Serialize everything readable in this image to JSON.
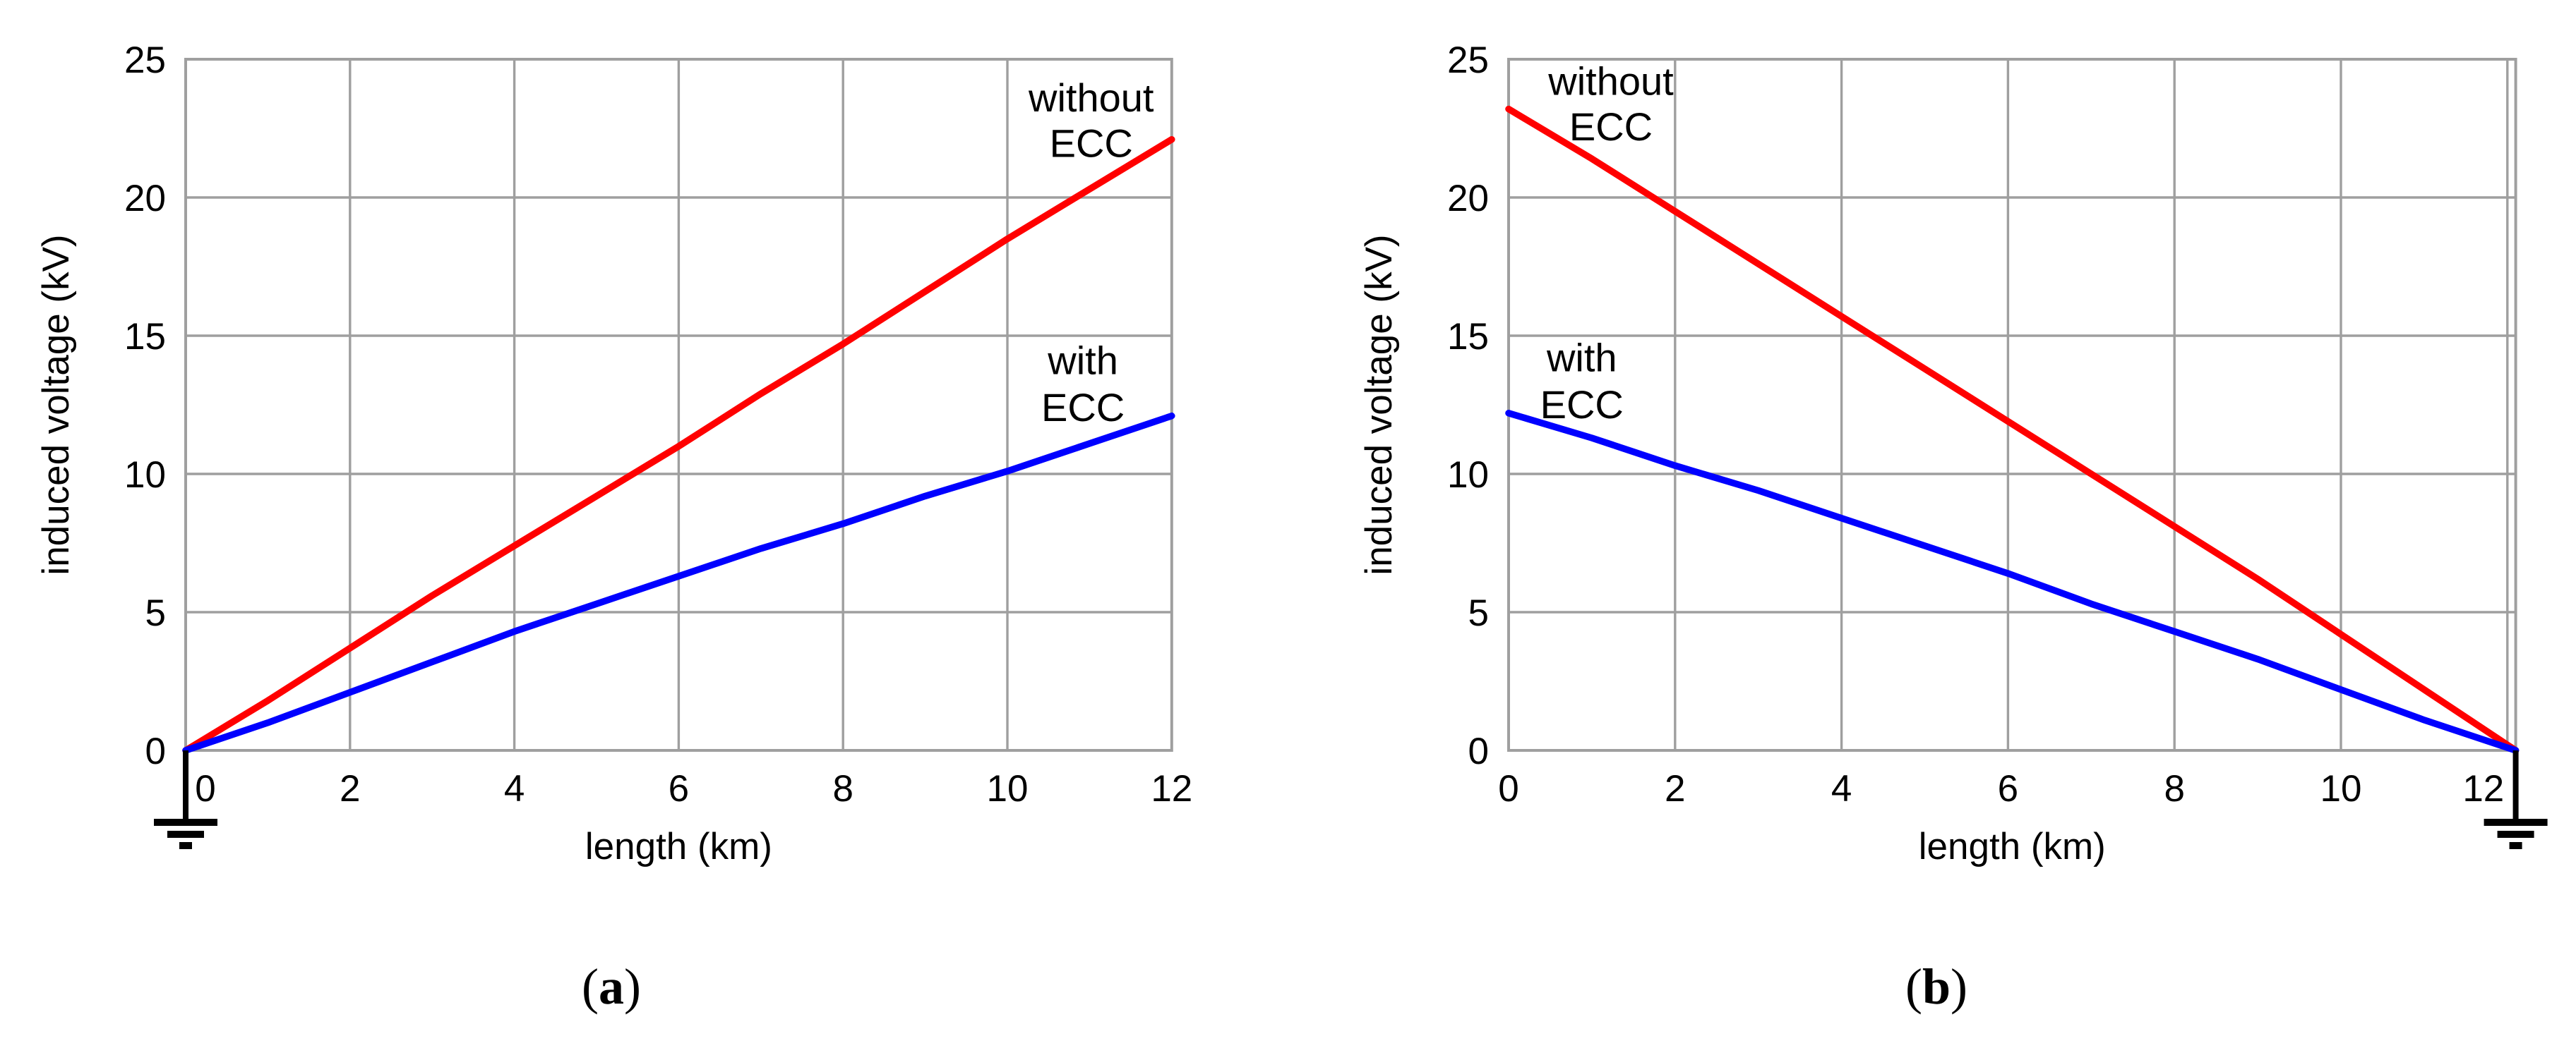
{
  "figure": {
    "captions": [
      {
        "open": "(",
        "letter": "a",
        "close": ")"
      },
      {
        "open": "(",
        "letter": "b",
        "close": ")"
      }
    ]
  },
  "colors": {
    "without_ecc": "#ff0000",
    "with_ecc": "#0000ff",
    "grid": "#9f9f9f",
    "text": "#000000"
  },
  "chart_data": [
    {
      "id": "a",
      "type": "line",
      "title": "",
      "xlabel": "length (km)",
      "ylabel": "induced voltage (kV)",
      "xlim": [
        0,
        12
      ],
      "ylim": [
        0,
        25
      ],
      "xticks": [
        0,
        2,
        4,
        6,
        8,
        10,
        12
      ],
      "yticks": [
        0,
        5,
        10,
        15,
        20,
        25
      ],
      "grid": true,
      "legend_position": "inline-annotations",
      "ground_symbol_at_km": 0,
      "series": [
        {
          "name": "without ECC",
          "color": "#ff0000",
          "x": [
            0,
            1,
            2,
            3,
            4,
            5,
            6,
            7,
            8,
            9,
            10,
            11,
            12
          ],
          "values": [
            0,
            1.8,
            3.7,
            5.6,
            7.4,
            9.2,
            11.0,
            12.9,
            14.7,
            16.6,
            18.5,
            20.3,
            22.1
          ]
        },
        {
          "name": "with ECC",
          "color": "#0000ff",
          "x": [
            0,
            1,
            2,
            3,
            4,
            5,
            6,
            7,
            8,
            9,
            10,
            11,
            12
          ],
          "values": [
            0,
            1.0,
            2.1,
            3.2,
            4.3,
            5.3,
            6.3,
            7.3,
            8.2,
            9.2,
            10.1,
            11.1,
            12.1
          ]
        }
      ],
      "annotations": [
        {
          "lines": [
            "without",
            "ECC"
          ],
          "color": "#ff0000",
          "x_km": 11.02,
          "y_kv": [
            23.6,
            21.95
          ]
        },
        {
          "lines": [
            "with",
            "ECC"
          ],
          "color": "#0000ff",
          "x_km": 10.92,
          "y_kv": [
            14.1,
            12.4
          ]
        }
      ]
    },
    {
      "id": "b",
      "type": "line",
      "title": "",
      "xlabel": "length (km)",
      "ylabel": "induced voltage (kV)",
      "xlim": [
        0,
        12.1
      ],
      "ylim": [
        0,
        25
      ],
      "xticks": [
        0,
        2,
        4,
        6,
        8,
        10,
        12
      ],
      "yticks": [
        0,
        5,
        10,
        15,
        20,
        25
      ],
      "grid": true,
      "legend_position": "inline-annotations",
      "ground_symbol_at_km": 12.1,
      "series": [
        {
          "name": "without ECC",
          "color": "#ff0000",
          "x": [
            0,
            1,
            2,
            3,
            4,
            5,
            6,
            7,
            8,
            9,
            10,
            11,
            12,
            12.1
          ],
          "values": [
            23.2,
            21.4,
            19.5,
            17.6,
            15.7,
            13.8,
            11.9,
            10.0,
            8.1,
            6.2,
            4.2,
            2.2,
            0.2,
            0
          ]
        },
        {
          "name": "with ECC",
          "color": "#0000ff",
          "x": [
            0,
            1,
            2,
            3,
            4,
            5,
            6,
            7,
            8,
            9,
            10,
            11,
            12,
            12.1
          ],
          "values": [
            12.2,
            11.3,
            10.3,
            9.4,
            8.4,
            7.4,
            6.4,
            5.3,
            4.3,
            3.3,
            2.2,
            1.1,
            0.1,
            0
          ]
        }
      ],
      "annotations": [
        {
          "lines": [
            "without",
            "ECC"
          ],
          "color": "#ff0000",
          "x_km": 1.23,
          "y_kv": [
            24.2,
            22.55
          ]
        },
        {
          "lines": [
            "with",
            "ECC"
          ],
          "color": "#0000ff",
          "x_km": 0.88,
          "y_kv": [
            14.2,
            12.5
          ]
        }
      ]
    }
  ]
}
